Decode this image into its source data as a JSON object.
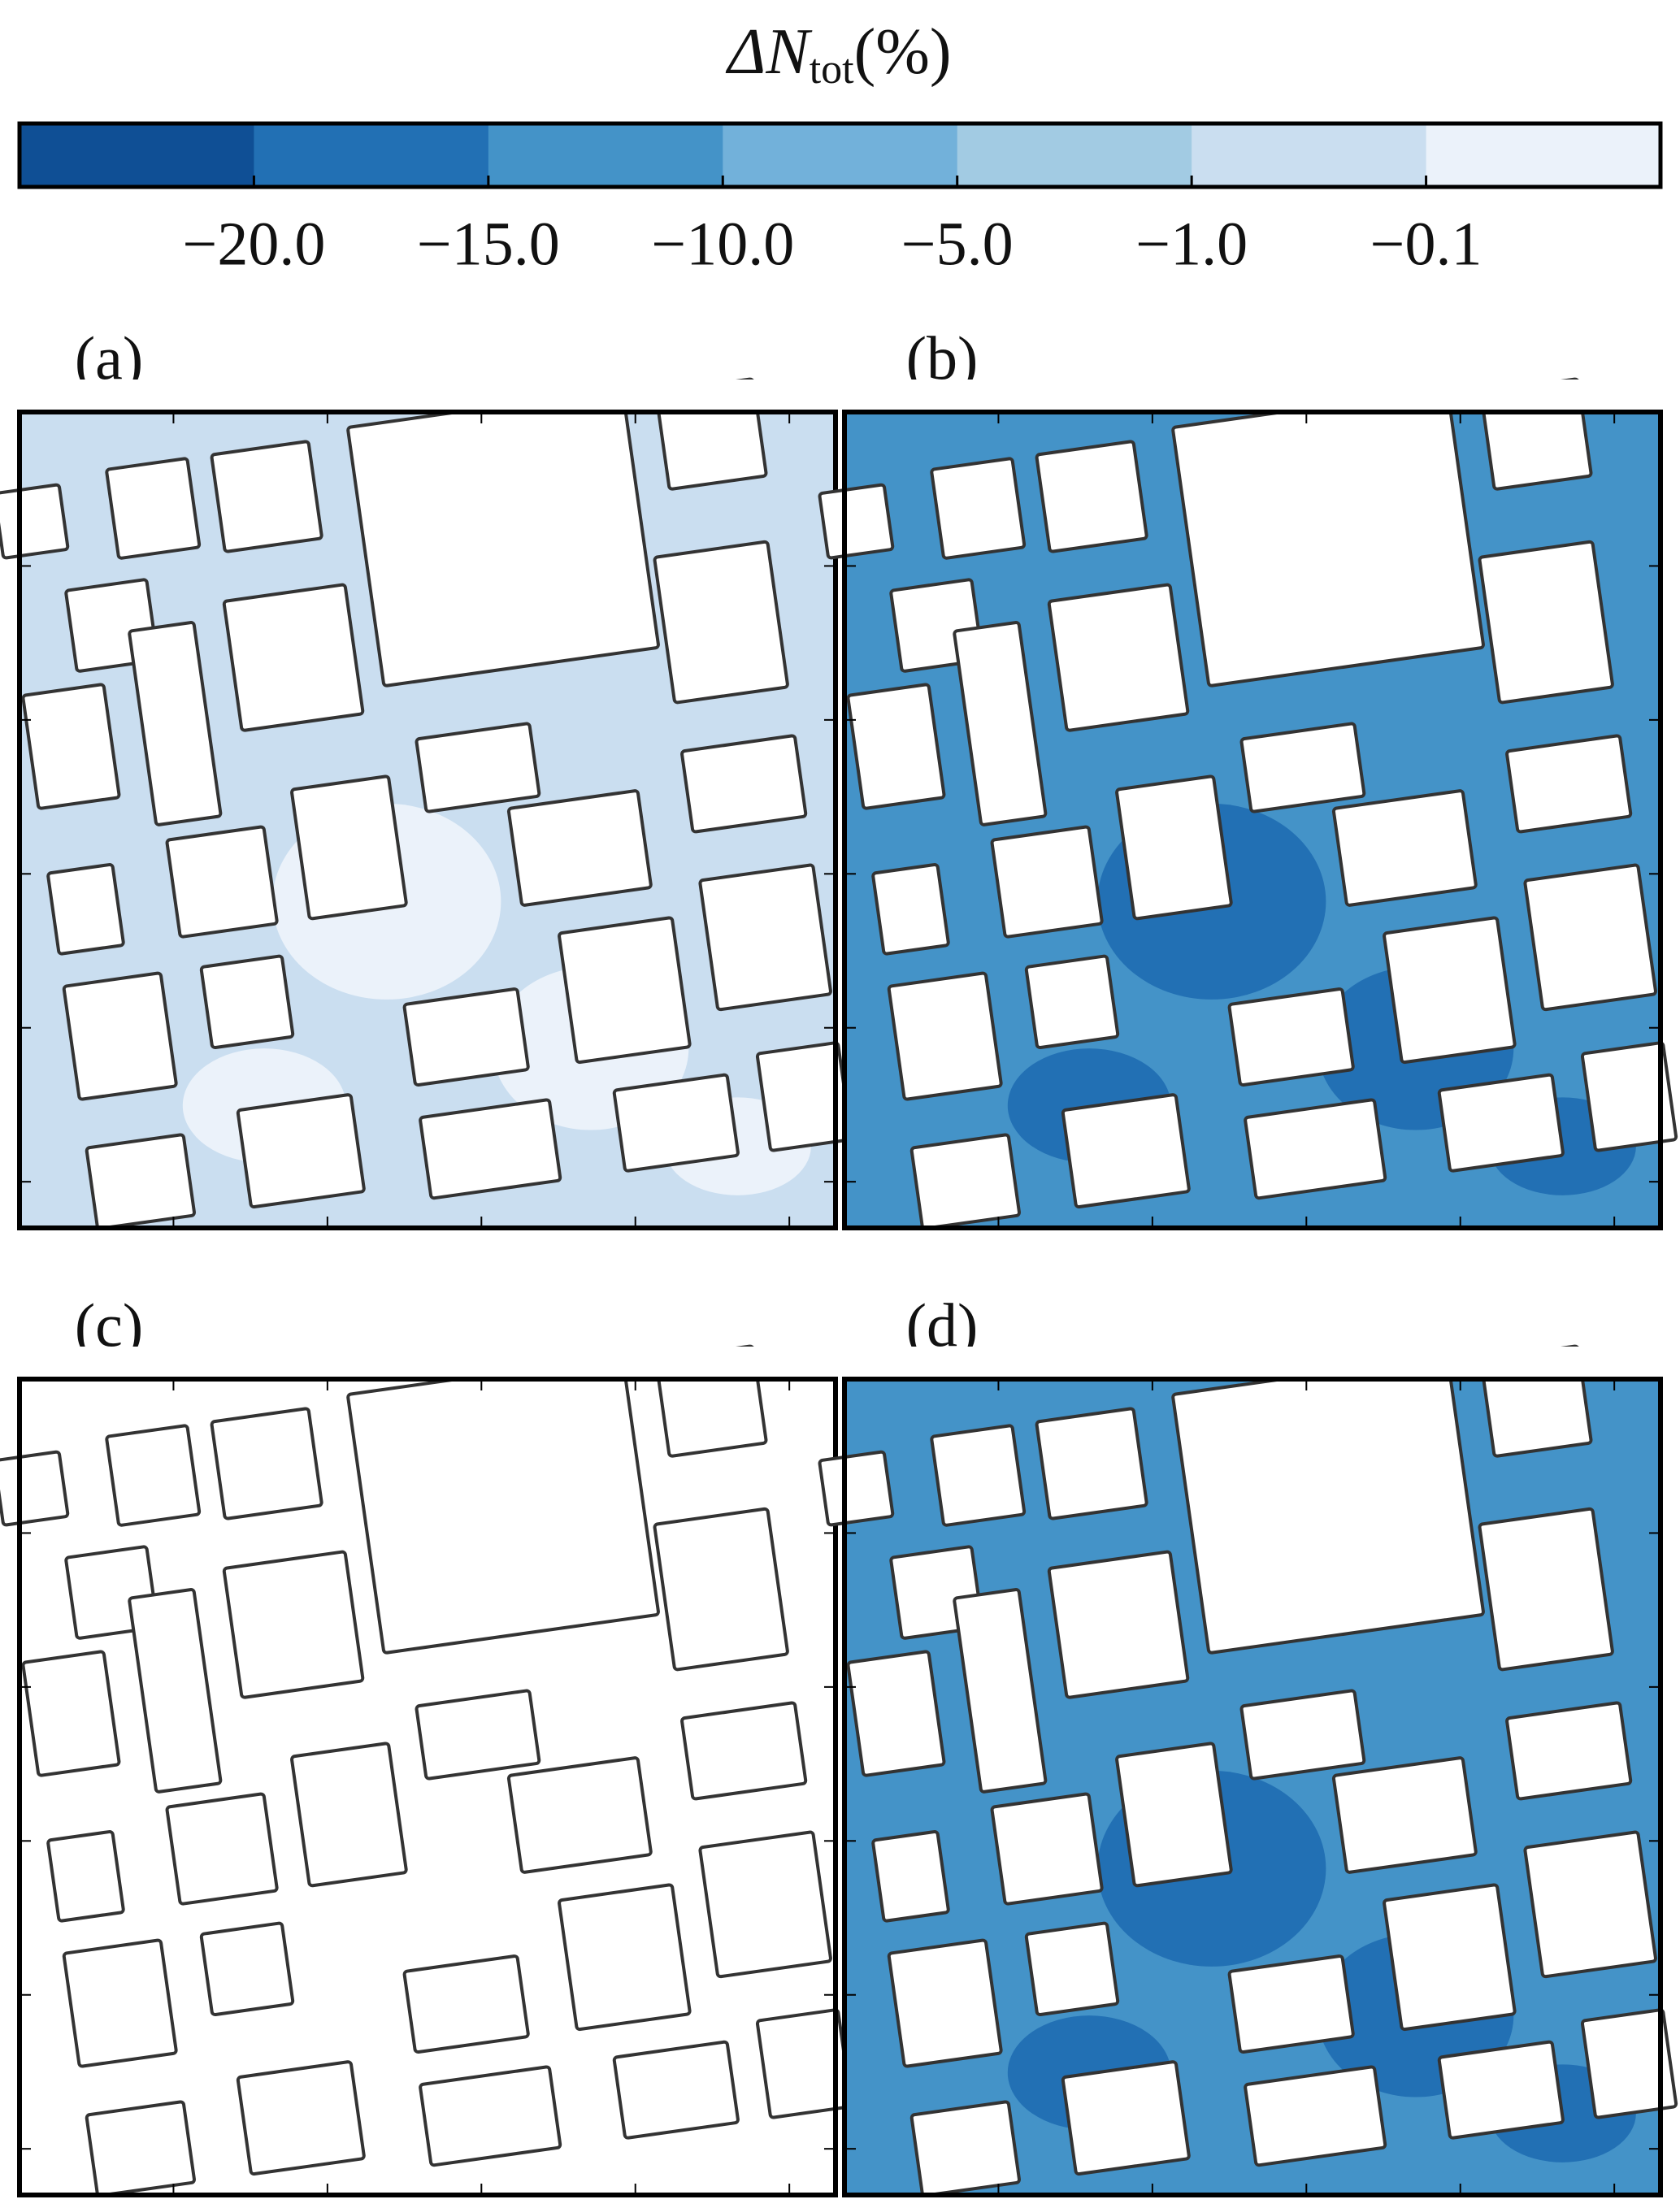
{
  "chart_data": {
    "type": "contour-map",
    "colorbar": {
      "label": "ΔN",
      "label_subscript": "tot",
      "label_unit": "(%)",
      "colors": [
        "#0f4f95",
        "#2270b4",
        "#4493c8",
        "#72b1da",
        "#a2cbe3",
        "#cadef0",
        "#ebf2fa"
      ],
      "ticks": [
        {
          "value": -20,
          "label": "−20.0"
        },
        {
          "value": -15,
          "label": "−15.0"
        },
        {
          "value": -10,
          "label": "−10.0"
        },
        {
          "value": -5,
          "label": "−5.0"
        },
        {
          "value": -1,
          "label": "−1.0"
        },
        {
          "value": -0.1,
          "label": "−0.1"
        }
      ]
    },
    "panels": [
      {
        "label": "(a)",
        "fill": "#cadef0",
        "patch": "#ebf2fa"
      },
      {
        "label": "(b)",
        "fill": "#4493c8",
        "patch": "#2270b4"
      },
      {
        "label": "(c)",
        "fill": "#ffffff",
        "patch": "#ffffff"
      },
      {
        "label": "(d)",
        "fill": "#4493c8",
        "patch": "#2270b4"
      }
    ]
  }
}
